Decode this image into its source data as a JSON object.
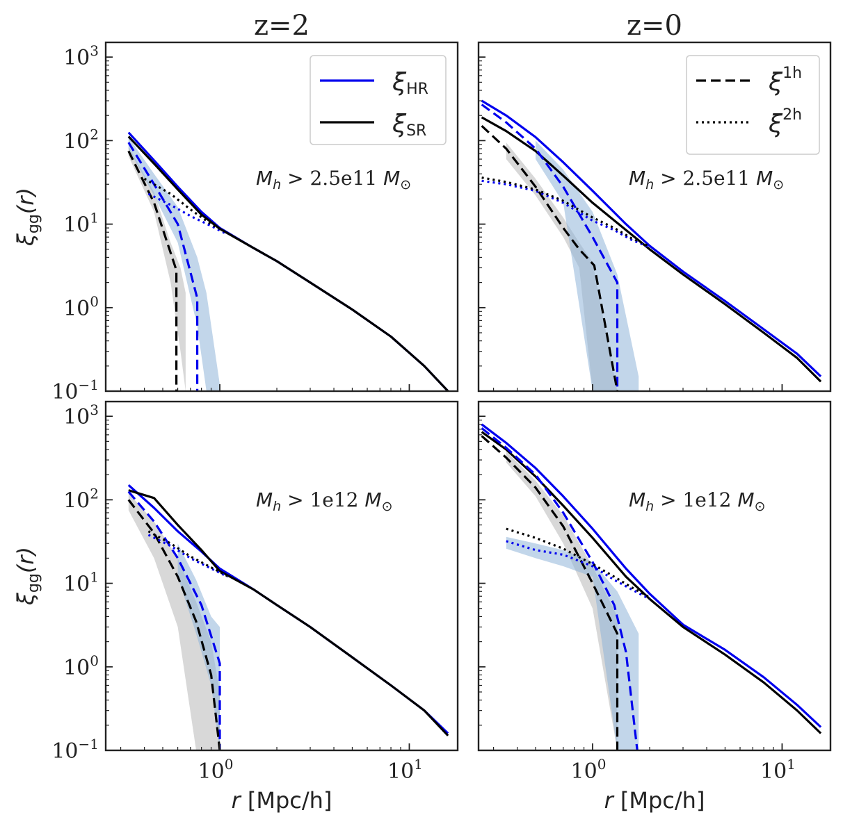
{
  "colors": {
    "hr": "#0000ee",
    "sr": "#000000",
    "hr_band": "#8fb4d8",
    "sr_band": "#b8b8b8",
    "frame": "#222222"
  },
  "chart_data": {
    "type": "line",
    "layout": "2x2 grid",
    "xscale": "log",
    "yscale": "log",
    "xlim": [
      0.25,
      18
    ],
    "ylim": [
      0.1,
      1500
    ],
    "xlabel_prefix": "r",
    "xlabel_unit": "[Mpc/h]",
    "ylabel_base": "ξ",
    "ylabel_sub": "gg",
    "ylabel_arg": "(r)",
    "yticks": [
      {
        "base": "10",
        "exp": "−1",
        "value": 0.1
      },
      {
        "base": "10",
        "exp": "0",
        "value": 1
      },
      {
        "base": "10",
        "exp": "1",
        "value": 10
      },
      {
        "base": "10",
        "exp": "2",
        "value": 100
      },
      {
        "base": "10",
        "exp": "3",
        "value": 1000
      }
    ],
    "xticks": [
      {
        "base": "10",
        "exp": "0",
        "value": 1
      },
      {
        "base": "10",
        "exp": "1",
        "value": 10
      }
    ],
    "legend_left": [
      {
        "symbol": "ξ",
        "sub": "HR",
        "style": "solid",
        "color": "blue"
      },
      {
        "symbol": "ξ",
        "sub": "SR",
        "style": "solid",
        "color": "black"
      }
    ],
    "legend_right": [
      {
        "symbol": "ξ",
        "sup": "1h",
        "style": "dashed"
      },
      {
        "symbol": "ξ",
        "sup": "2h",
        "style": "dotted"
      }
    ],
    "panels": [
      {
        "id": "z2-low",
        "row": 0,
        "col": 0,
        "column_title": "z=2",
        "annotation": {
          "var": "M",
          "sub": "h",
          "op": ">",
          "value": "2.5e11",
          "unit": "M",
          "unit_sub": "⊙"
        },
        "series": [
          {
            "name": "ξHR total",
            "color": "hr",
            "style": "solid",
            "x": [
              0.33,
              0.45,
              0.6,
              0.8,
              1.0,
              1.5,
              2.0,
              3.0,
              5.0,
              8.0,
              12.0,
              16.0
            ],
            "y": [
              125,
              58,
              28,
              14,
              9,
              5.2,
              3.6,
              2.0,
              0.95,
              0.45,
              0.2,
              0.1
            ]
          },
          {
            "name": "ξSR total",
            "color": "sr",
            "style": "solid",
            "x": [
              0.33,
              0.45,
              0.6,
              0.8,
              1.0,
              1.5,
              2.0,
              3.0,
              5.0,
              8.0,
              12.0,
              16.0
            ],
            "y": [
              112,
              53,
              26,
              13,
              8.8,
              5.2,
              3.6,
              2.0,
              0.95,
              0.45,
              0.2,
              0.1
            ]
          },
          {
            "name": "ξHR 1h",
            "color": "hr",
            "style": "dashed",
            "x": [
              0.33,
              0.45,
              0.6,
              0.76,
              0.76
            ],
            "y": [
              95,
              30,
              10,
              1.3,
              0.1
            ]
          },
          {
            "name": "ξSR 1h",
            "color": "sr",
            "style": "dashed",
            "x": [
              0.33,
              0.45,
              0.59,
              0.59
            ],
            "y": [
              75,
              18,
              2.8,
              0.1
            ]
          },
          {
            "name": "ξHR 2h",
            "color": "hr",
            "style": "dotted",
            "x": [
              0.42,
              0.55,
              0.7,
              0.9,
              1.1
            ],
            "y": [
              23,
              17,
              12.5,
              9.5,
              7.5
            ]
          },
          {
            "name": "ξSR 2h",
            "color": "sr",
            "style": "dotted",
            "x": [
              0.4,
              0.55,
              0.7,
              0.9,
              1.1
            ],
            "y": [
              35,
              23,
              15,
              10,
              7.8
            ]
          }
        ],
        "bands": [
          {
            "color": "sr_band",
            "x": [
              0.33,
              0.45,
              0.55,
              0.62,
              0.66
            ],
            "lower": [
              65,
              14,
              2.0,
              0.3,
              0.1
            ],
            "upper": [
              85,
              24,
              6,
              3.0,
              1.5
            ]
          },
          {
            "color": "hr_band",
            "x": [
              0.33,
              0.45,
              0.6,
              0.76,
              0.85,
              1.0
            ],
            "lower": [
              80,
              22,
              6,
              0.6,
              0.1,
              0.1
            ],
            "upper": [
              110,
              40,
              16,
              4.0,
              1.5,
              0.12
            ]
          }
        ]
      },
      {
        "id": "z0-low",
        "row": 0,
        "col": 1,
        "column_title": "z=0",
        "annotation": {
          "var": "M",
          "sub": "h",
          "op": ">",
          "value": "2.5e11",
          "unit": "M",
          "unit_sub": "⊙"
        },
        "series": [
          {
            "name": "ξHR total",
            "color": "hr",
            "style": "solid",
            "x": [
              0.26,
              0.35,
              0.5,
              0.7,
              1.0,
              1.5,
              2.0,
              3.0,
              5.0,
              8.0,
              12.0,
              16.0
            ],
            "y": [
              300,
              200,
              110,
              55,
              25,
              10,
              5.5,
              2.7,
              1.2,
              0.55,
              0.28,
              0.15
            ]
          },
          {
            "name": "ξSR total",
            "color": "sr",
            "style": "solid",
            "x": [
              0.26,
              0.35,
              0.5,
              0.7,
              1.0,
              1.5,
              2.0,
              3.0,
              5.0,
              8.0,
              12.0,
              16.0
            ],
            "y": [
              190,
              130,
              75,
              38,
              18,
              8.5,
              5.0,
              2.5,
              1.1,
              0.5,
              0.25,
              0.13
            ]
          },
          {
            "name": "ξHR 1h",
            "color": "hr",
            "style": "dashed",
            "x": [
              0.26,
              0.35,
              0.5,
              0.7,
              1.0,
              1.35,
              1.35
            ],
            "y": [
              270,
              165,
              80,
              28,
              7,
              2.0,
              0.1
            ]
          },
          {
            "name": "ξSR 1h",
            "color": "sr",
            "style": "dashed",
            "x": [
              0.26,
              0.35,
              0.5,
              0.7,
              0.85,
              1.02,
              1.35
            ],
            "y": [
              150,
              80,
              28,
              9,
              5,
              3.2,
              0.1
            ]
          },
          {
            "name": "ξHR 2h",
            "color": "hr",
            "style": "dotted",
            "x": [
              0.26,
              0.35,
              0.5,
              0.7,
              1.0,
              1.3,
              1.6,
              2.0
            ],
            "y": [
              33,
              30,
              25,
              18,
              11,
              8.5,
              6.5,
              5.3
            ]
          },
          {
            "name": "ξSR 2h",
            "color": "sr",
            "style": "dotted",
            "x": [
              0.26,
              0.35,
              0.5,
              0.7,
              1.0,
              1.3,
              1.6,
              2.0
            ],
            "y": [
              36,
              32,
              26,
              19,
              12,
              9,
              6.8,
              5.4
            ]
          }
        ],
        "bands": [
          {
            "color": "sr_band",
            "x": [
              0.35,
              0.5,
              0.7,
              0.85,
              1.0,
              1.35
            ],
            "lower": [
              60,
              22,
              7,
              3,
              0.1,
              0.1
            ],
            "upper": [
              95,
              35,
              12,
              6,
              3.5,
              0.1
            ]
          },
          {
            "color": "hr_band",
            "x": [
              0.5,
              0.7,
              1.0,
              1.35,
              1.75
            ],
            "lower": [
              60,
              18,
              0.1,
              0.1,
              0.1
            ],
            "upper": [
              100,
              45,
              14,
              2.5,
              0.15
            ]
          }
        ]
      },
      {
        "id": "z2-high",
        "row": 1,
        "col": 0,
        "column_title": "",
        "annotation": {
          "var": "M",
          "sub": "h",
          "op": ">",
          "value": "1e12",
          "unit": "M",
          "unit_sub": "⊙"
        },
        "series": [
          {
            "name": "ξHR total",
            "color": "hr",
            "style": "solid",
            "x": [
              0.33,
              0.45,
              0.6,
              0.8,
              1.0,
              1.5,
              2.0,
              3.0,
              5.0,
              8.0,
              12.0,
              16.0
            ],
            "y": [
              150,
              80,
              42,
              24,
              15,
              8.5,
              5.5,
              3.0,
              1.3,
              0.6,
              0.3,
              0.16
            ]
          },
          {
            "name": "ξSR total",
            "color": "sr",
            "style": "solid",
            "x": [
              0.33,
              0.45,
              0.6,
              0.8,
              1.0,
              1.5,
              2.0,
              3.0,
              5.0,
              8.0,
              12.0,
              16.0
            ],
            "y": [
              130,
              105,
              50,
              25,
              14,
              8.5,
              5.5,
              3.0,
              1.3,
              0.6,
              0.3,
              0.15
            ]
          },
          {
            "name": "ξHR 1h",
            "color": "hr",
            "style": "dashed",
            "x": [
              0.33,
              0.45,
              0.6,
              0.8,
              1.0,
              1.0
            ],
            "y": [
              125,
              55,
              20,
              5.5,
              1.1,
              0.1
            ]
          },
          {
            "name": "ξSR 1h",
            "color": "sr",
            "style": "dashed",
            "x": [
              0.33,
              0.45,
              0.6,
              0.75,
              0.9,
              1.0
            ],
            "y": [
              100,
              40,
              12,
              3.5,
              0.8,
              0.1
            ]
          },
          {
            "name": "ξHR 2h",
            "color": "hr",
            "style": "dotted",
            "x": [
              0.42,
              0.55,
              0.7,
              0.9,
              1.1
            ],
            "y": [
              38,
              28,
              20,
              15,
              12
            ]
          },
          {
            "name": "ξSR 2h",
            "color": "sr",
            "style": "dotted",
            "x": [
              0.42,
              0.55,
              0.7,
              0.9,
              1.1
            ],
            "y": [
              42,
              30,
              21,
              15.5,
              12.2
            ]
          }
        ],
        "bands": [
          {
            "color": "sr_band",
            "x": [
              0.33,
              0.45,
              0.6,
              0.75,
              0.9,
              1.0
            ],
            "lower": [
              75,
              20,
              3,
              0.1,
              0.1,
              0.1
            ],
            "upper": [
              120,
              55,
              20,
              6,
              2,
              0.5
            ]
          },
          {
            "color": "hr_band",
            "x": [
              0.6,
              0.75,
              0.9,
              1.0
            ],
            "lower": [
              12,
              2.5,
              0.6,
              0.1
            ],
            "upper": [
              30,
              11,
              4,
              3
            ]
          }
        ]
      },
      {
        "id": "z0-high",
        "row": 1,
        "col": 1,
        "column_title": "",
        "annotation": {
          "var": "M",
          "sub": "h",
          "op": ">",
          "value": "1e12",
          "unit": "M",
          "unit_sub": "⊙"
        },
        "series": [
          {
            "name": "ξHR total",
            "color": "hr",
            "style": "solid",
            "x": [
              0.26,
              0.35,
              0.5,
              0.7,
              1.0,
              1.5,
              2.0,
              3.0,
              5.0,
              8.0,
              12.0,
              16.0
            ],
            "y": [
              800,
              480,
              240,
              110,
              45,
              15,
              7.5,
              3.2,
              1.6,
              0.75,
              0.35,
              0.19
            ]
          },
          {
            "name": "ξSR total",
            "color": "sr",
            "style": "solid",
            "x": [
              0.26,
              0.35,
              0.5,
              0.7,
              1.0,
              1.5,
              2.0,
              3.0,
              5.0,
              8.0,
              12.0,
              16.0
            ],
            "y": [
              650,
              400,
              190,
              85,
              35,
              12,
              6.5,
              3.0,
              1.4,
              0.65,
              0.3,
              0.16
            ]
          },
          {
            "name": "ξHR 1h",
            "color": "hr",
            "style": "dashed",
            "x": [
              0.26,
              0.35,
              0.5,
              0.7,
              1.0,
              1.3,
              1.5,
              1.72
            ],
            "y": [
              720,
              420,
              200,
              70,
              18,
              5.5,
              1.5,
              0.1
            ]
          },
          {
            "name": "ξSR 1h",
            "color": "sr",
            "style": "dashed",
            "x": [
              0.26,
              0.35,
              0.5,
              0.7,
              1.0,
              1.35,
              1.35
            ],
            "y": [
              580,
              320,
              140,
              48,
              10,
              2.5,
              0.1
            ]
          },
          {
            "name": "ξHR 2h",
            "color": "hr",
            "style": "dotted",
            "x": [
              0.35,
              0.5,
              0.7,
              1.0,
              1.3,
              1.6,
              2.0
            ],
            "y": [
              32,
              25,
              22,
              16,
              11,
              8.5,
              6.5
            ]
          },
          {
            "name": "ξSR 2h",
            "color": "sr",
            "style": "dotted",
            "x": [
              0.35,
              0.5,
              0.7,
              1.0,
              1.3,
              1.6,
              2.0
            ],
            "y": [
              45,
              35,
              26,
              17,
              12,
              9,
              6.8
            ]
          }
        ],
        "bands": [
          {
            "color": "sr_band",
            "x": [
              0.35,
              0.5,
              0.7,
              1.0,
              1.35
            ],
            "lower": [
              280,
              110,
              30,
              5,
              0.1
            ],
            "upper": [
              380,
              170,
              65,
              16,
              4
            ]
          },
          {
            "color": "hr_band",
            "x": [
              0.35,
              0.5,
              0.7,
              1.0,
              1.35,
              1.75
            ],
            "lower": [
              26,
              20,
              16,
              12,
              0.1,
              0.1
            ],
            "upper": [
              36,
              30,
              25,
              18,
              8,
              2.5
            ]
          }
        ]
      }
    ]
  }
}
